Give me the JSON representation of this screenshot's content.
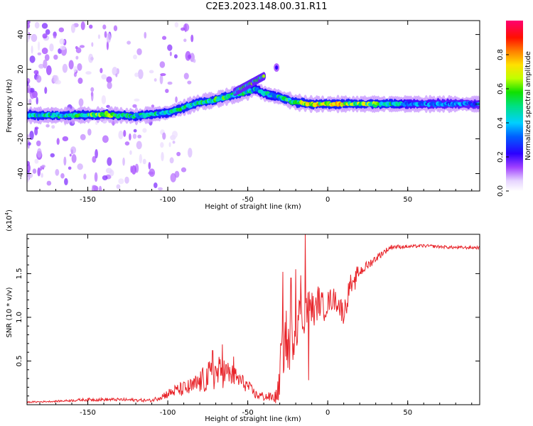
{
  "title": "C2E3.2023.148.00.31.R11",
  "colors": {
    "trace": "#e8242a",
    "axis": "#000000",
    "background": "#ffffff"
  },
  "chart_data": [
    {
      "type": "heatmap",
      "name": "spectrogram",
      "xlabel": "Height of straight line (km)",
      "ylabel": "Frequency (Hz)",
      "xlim": [
        -188,
        95
      ],
      "ylim": [
        -50,
        48
      ],
      "xticks": [
        -150,
        -100,
        -50,
        0,
        50
      ],
      "xtick_labels": [
        "-150",
        "-100",
        "-50",
        "0",
        "50"
      ],
      "yticks": [
        -40,
        -20,
        0,
        20,
        40
      ],
      "ytick_labels": [
        "-40",
        "-20",
        "0",
        "20",
        "40"
      ],
      "ridge": {
        "x": [
          -188,
          -160,
          -140,
          -120,
          -100,
          -90,
          -80,
          -70,
          -60,
          -50,
          -45,
          -40,
          -30,
          -20,
          -10,
          0,
          20,
          50,
          95
        ],
        "y": [
          -6.5,
          -6.5,
          -6,
          -7,
          -5,
          -2,
          1,
          2.5,
          5,
          7,
          9,
          6,
          4,
          1,
          0,
          0,
          0,
          0,
          0
        ],
        "peak_amplitude": [
          0.55,
          0.6,
          0.75,
          0.55,
          0.55,
          0.6,
          0.6,
          0.65,
          0.6,
          0.55,
          0.5,
          0.5,
          0.55,
          0.75,
          0.85,
          0.85,
          0.8,
          0.45,
          0.4
        ]
      },
      "secondary_branch": {
        "x": [
          -58,
          -52,
          -46,
          -40
        ],
        "y": [
          7,
          10,
          13,
          16
        ]
      },
      "isolated_blob": {
        "x": -32,
        "y": 21
      },
      "colorbar": {
        "label": "Normalized spectral amplitude",
        "range": [
          0,
          1
        ],
        "ticks": [
          0,
          0.2,
          0.4,
          0.6,
          0.8
        ],
        "tick_labels": [
          "0.0",
          "0.2",
          "0.4",
          "0.6",
          "0.8"
        ],
        "colormap": "rainbow: white-lavender-violet-blue-cyan-green-yellow-orange-red-magenta"
      }
    },
    {
      "type": "line",
      "name": "snr",
      "xlabel": "Height of straight line (km)",
      "ylabel": "SNR (10 * v/v)",
      "yscale_label": "(x10",
      "yscale_exponent": "4",
      "yscale_close": ")",
      "xlim": [
        -188,
        95
      ],
      "ylim": [
        0,
        1.95
      ],
      "xticks": [
        -150,
        -100,
        -50,
        0,
        50
      ],
      "xtick_labels": [
        "-150",
        "-100",
        "-50",
        "0",
        "50"
      ],
      "yticks": [
        0.5,
        1.0,
        1.5
      ],
      "ytick_labels": [
        "0.5",
        "1.0",
        "1.5"
      ],
      "series": [
        {
          "name": "SNR",
          "x": [
            -188,
            -170,
            -150,
            -130,
            -110,
            -100,
            -95,
            -90,
            -85,
            -80,
            -75,
            -70,
            -65,
            -60,
            -55,
            -50,
            -45,
            -40,
            -35,
            -32,
            -30,
            -28,
            -26,
            -24,
            -22,
            -20,
            -18,
            -16,
            -14,
            -12,
            -10,
            -8,
            -6,
            -4,
            -2,
            0,
            2,
            4,
            6,
            8,
            10,
            12,
            14,
            16,
            18,
            20,
            25,
            30,
            35,
            40,
            50,
            60,
            70,
            80,
            95
          ],
          "y": [
            0.03,
            0.04,
            0.06,
            0.06,
            0.05,
            0.13,
            0.17,
            0.19,
            0.21,
            0.27,
            0.33,
            0.38,
            0.39,
            0.35,
            0.29,
            0.22,
            0.12,
            0.1,
            0.09,
            0.1,
            0.4,
            0.74,
            0.82,
            0.72,
            0.78,
            0.98,
            1.03,
            0.98,
            1.12,
            1.14,
            1.15,
            1.05,
            1.22,
            1.16,
            1.13,
            1.18,
            1.22,
            1.22,
            1.2,
            1.12,
            1.06,
            1.2,
            1.41,
            1.32,
            1.5,
            1.53,
            1.6,
            1.68,
            1.75,
            1.81,
            1.81,
            1.82,
            1.81,
            1.8,
            1.8
          ],
          "noise": [
            0.01,
            0.01,
            0.02,
            0.02,
            0.02,
            0.06,
            0.08,
            0.1,
            0.12,
            0.15,
            0.2,
            0.22,
            0.2,
            0.15,
            0.12,
            0.08,
            0.06,
            0.06,
            0.06,
            0.1,
            0.3,
            0.45,
            0.35,
            0.35,
            0.3,
            0.35,
            0.3,
            0.3,
            0.25,
            0.25,
            0.2,
            0.2,
            0.2,
            0.18,
            0.18,
            0.15,
            0.15,
            0.15,
            0.15,
            0.15,
            0.15,
            0.15,
            0.12,
            0.12,
            0.1,
            0.08,
            0.06,
            0.05,
            0.04,
            0.03,
            0.02,
            0.02,
            0.02,
            0.02,
            0.02
          ],
          "spikes": [
            [
              -14,
              1.96
            ],
            [
              -12,
              1.65
            ],
            [
              -20,
              1.55
            ],
            [
              -28,
              1.52
            ],
            [
              -23,
              1.45
            ],
            [
              -17,
              1.48
            ],
            [
              -66,
              0.69
            ],
            [
              -72,
              0.62
            ],
            [
              -59,
              0.55
            ],
            [
              -31,
              0.05
            ],
            [
              -12,
              0.28
            ],
            [
              -25,
              0.42
            ]
          ]
        }
      ]
    }
  ]
}
